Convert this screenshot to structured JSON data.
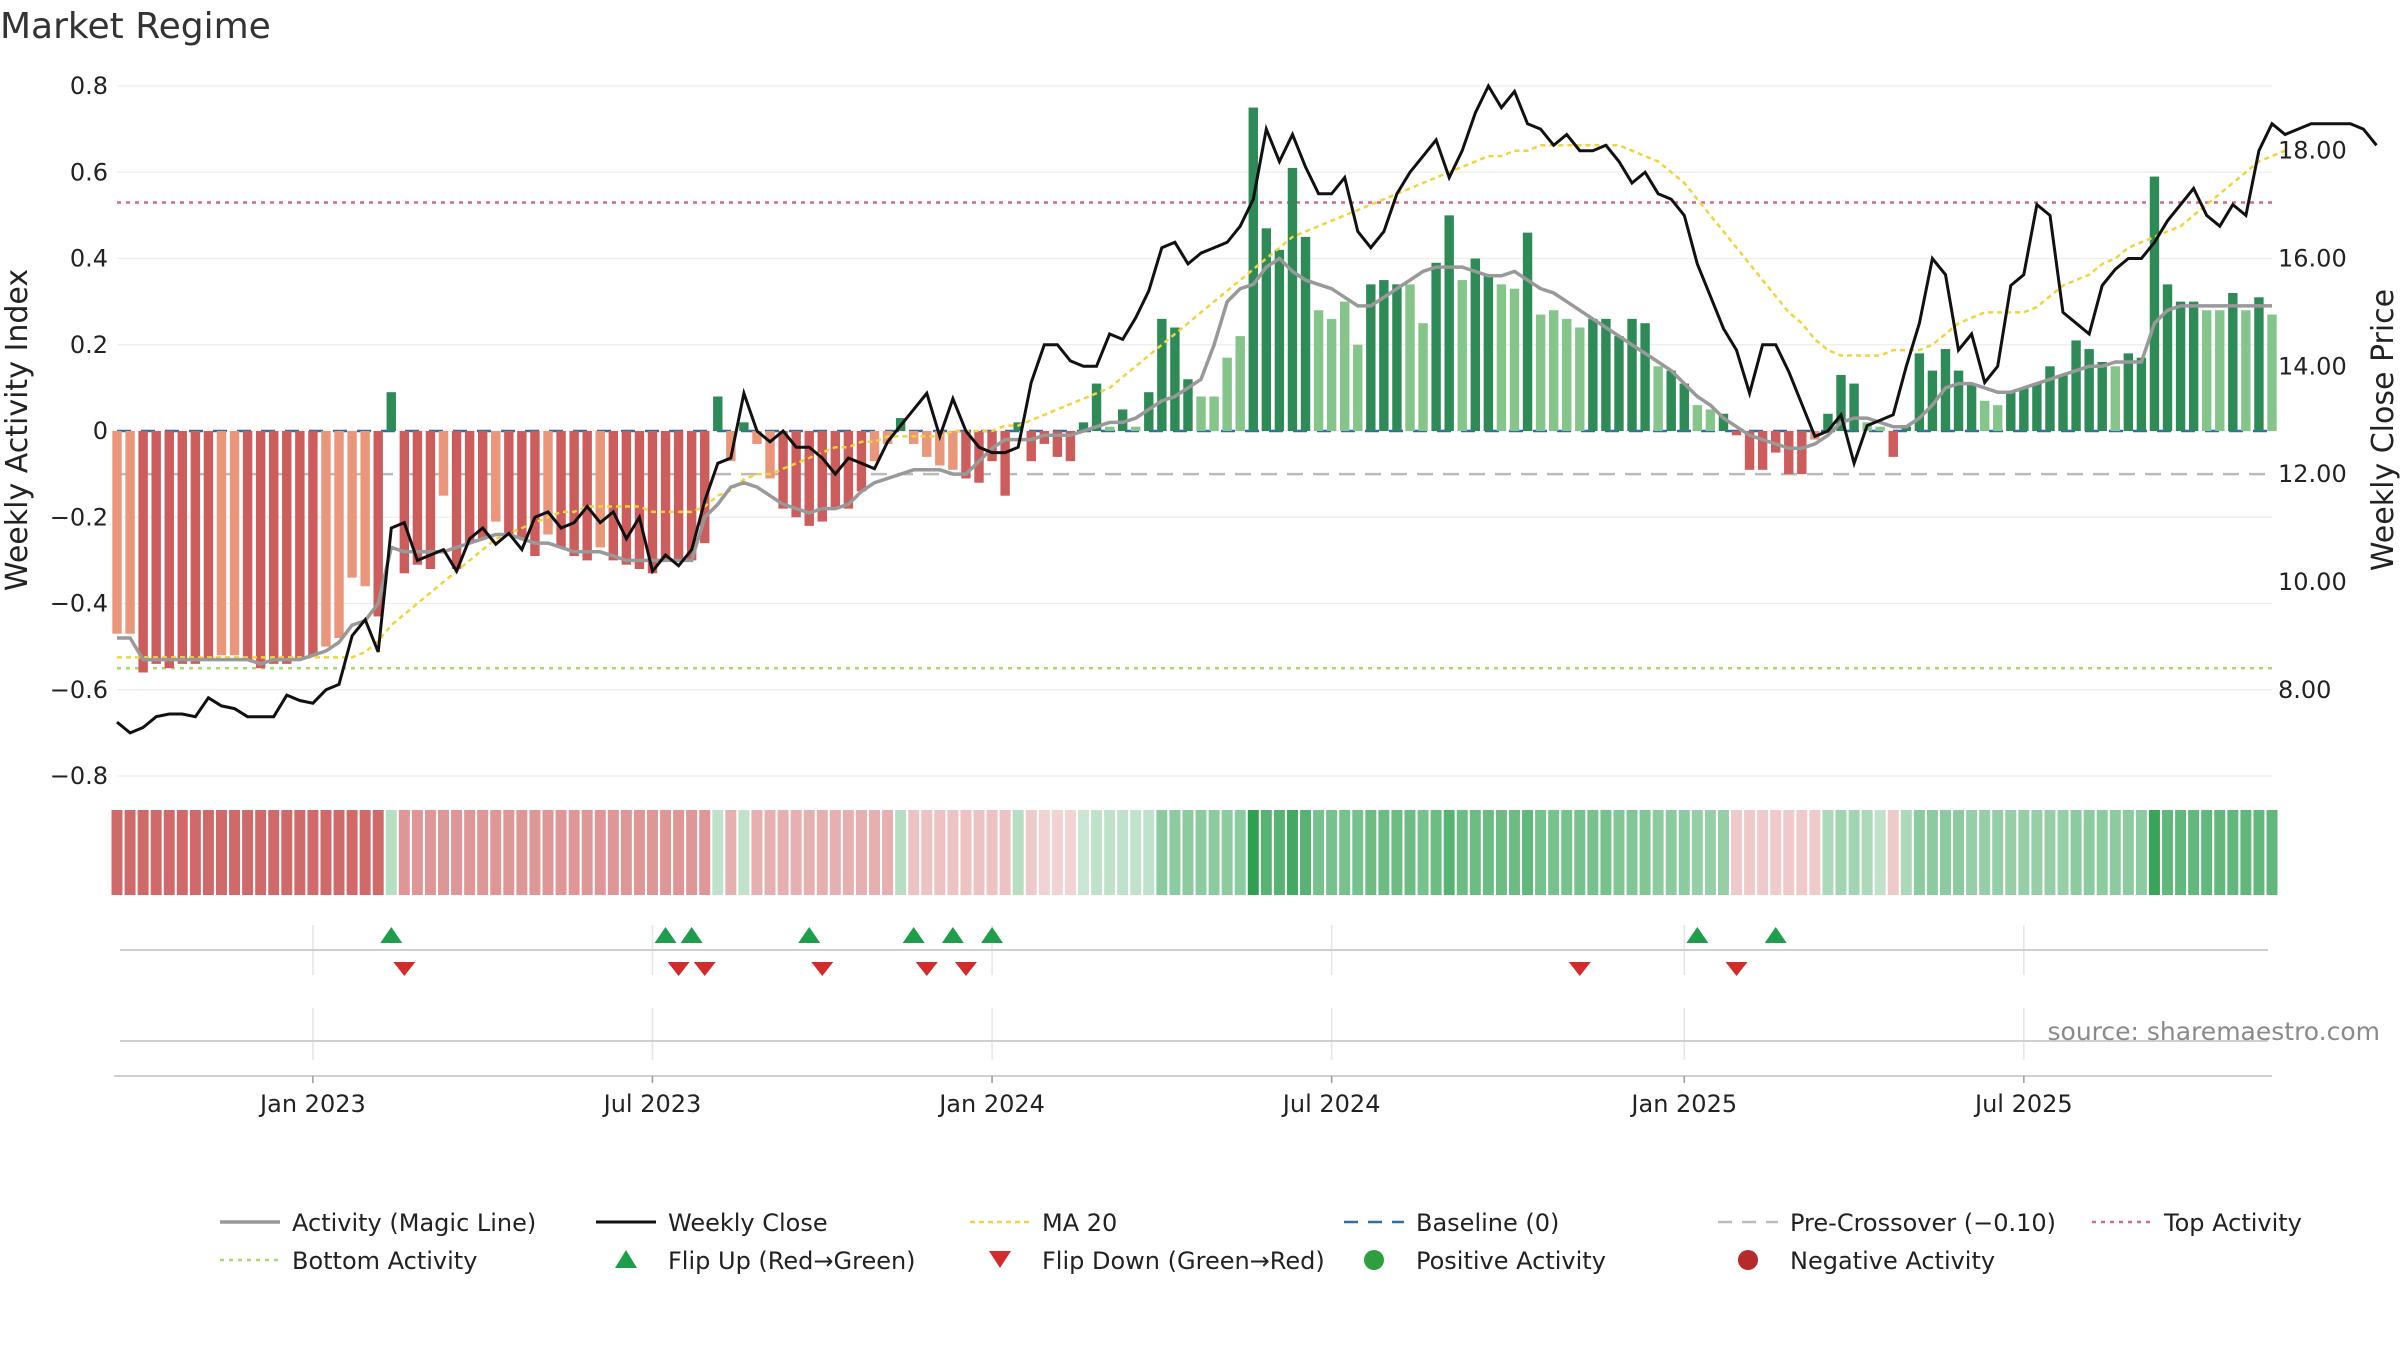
{
  "chart_data": {
    "type": "bar",
    "title": "Market Regime",
    "ylabel_left": "Weekly Activity Index",
    "ylabel_right": "Weekly Close Price",
    "source": "source: sharemaestro.com",
    "ylim_left": [
      -0.8,
      0.8
    ],
    "ylim_right": [
      6.4,
      19.2
    ],
    "yticks_left": [
      {
        "v": 0.8,
        "label": "0.8"
      },
      {
        "v": 0.6,
        "label": "0.6"
      },
      {
        "v": 0.4,
        "label": "0.4"
      },
      {
        "v": 0.2,
        "label": "0.2"
      },
      {
        "v": 0,
        "label": "0"
      },
      {
        "v": -0.2,
        "label": "−0.2"
      },
      {
        "v": -0.4,
        "label": "−0.4"
      },
      {
        "v": -0.6,
        "label": "−0.6"
      },
      {
        "v": -0.8,
        "label": "−0.8"
      }
    ],
    "yticks_right": [
      {
        "v": 18,
        "label": "18.00"
      },
      {
        "v": 16,
        "label": "16.00"
      },
      {
        "v": 14,
        "label": "14.00"
      },
      {
        "v": 12,
        "label": "12.00"
      },
      {
        "v": 10,
        "label": "10.00"
      },
      {
        "v": 8,
        "label": "8.00"
      }
    ],
    "xticks": [
      {
        "week": 15,
        "label": "Jan 2023"
      },
      {
        "week": 41,
        "label": "Jul 2023"
      },
      {
        "week": 67,
        "label": "Jan 2024"
      },
      {
        "week": 93,
        "label": "Jul 2024"
      },
      {
        "week": 120,
        "label": "Jan 2025"
      },
      {
        "week": 146,
        "label": "Jul 2025"
      }
    ],
    "levels": {
      "top": 0.53,
      "bottom": -0.55,
      "baseline": 0,
      "pre_crossover": -0.1
    },
    "activity": [
      -0.47,
      -0.47,
      -0.56,
      -0.54,
      -0.55,
      -0.54,
      -0.54,
      -0.53,
      -0.52,
      -0.52,
      -0.53,
      -0.55,
      -0.54,
      -0.54,
      -0.53,
      -0.52,
      -0.5,
      -0.48,
      -0.34,
      -0.36,
      -0.43,
      0.09,
      -0.33,
      -0.31,
      -0.32,
      -0.15,
      -0.32,
      -0.26,
      -0.25,
      -0.21,
      -0.24,
      -0.25,
      -0.29,
      -0.24,
      -0.27,
      -0.29,
      -0.3,
      -0.27,
      -0.3,
      -0.31,
      -0.32,
      -0.33,
      -0.3,
      -0.3,
      -0.3,
      -0.26,
      0.08,
      -0.07,
      0.02,
      -0.03,
      -0.11,
      -0.18,
      -0.2,
      -0.22,
      -0.21,
      -0.18,
      -0.18,
      -0.14,
      -0.07,
      -0.03,
      0.03,
      -0.03,
      -0.06,
      -0.08,
      -0.09,
      -0.11,
      -0.12,
      -0.07,
      -0.15,
      0.02,
      -0.07,
      -0.03,
      -0.06,
      -0.07,
      0.02,
      0.11,
      0.01,
      0.05,
      0.01,
      0.09,
      0.26,
      0.24,
      0.12,
      0.08,
      0.08,
      0.17,
      0.22,
      0.75,
      0.47,
      0.42,
      0.61,
      0.45,
      0.28,
      0.26,
      0.3,
      0.2,
      0.34,
      0.35,
      0.34,
      0.34,
      0.25,
      0.39,
      0.5,
      0.35,
      0.4,
      0.36,
      0.34,
      0.33,
      0.46,
      0.27,
      0.28,
      0.26,
      0.24,
      0.26,
      0.26,
      0.22,
      0.26,
      0.25,
      0.15,
      0.14,
      0.11,
      0.06,
      0.05,
      0.04,
      -0.01,
      -0.09,
      -0.09,
      -0.05,
      -0.1,
      -0.1,
      -0.02,
      0.04,
      0.13,
      0.11,
      0.02,
      0.01,
      -0.06,
      0.01,
      0.18,
      0.14,
      0.19,
      0.14,
      0.11,
      0.07,
      0.06,
      0.09,
      0.1,
      0.11,
      0.15,
      0.13,
      0.21,
      0.19,
      0.16,
      0.15,
      0.18,
      0.17,
      0.59,
      0.34,
      0.3,
      0.3,
      0.28,
      0.28,
      0.32,
      0.28,
      0.31,
      0.27
    ],
    "magic_line": [
      -0.48,
      -0.48,
      -0.53,
      -0.53,
      -0.53,
      -0.53,
      -0.53,
      -0.53,
      -0.53,
      -0.53,
      -0.53,
      -0.54,
      -0.53,
      -0.53,
      -0.53,
      -0.52,
      -0.51,
      -0.49,
      -0.45,
      -0.44,
      -0.4,
      -0.27,
      -0.28,
      -0.28,
      -0.28,
      -0.28,
      -0.27,
      -0.26,
      -0.25,
      -0.24,
      -0.24,
      -0.25,
      -0.26,
      -0.26,
      -0.27,
      -0.28,
      -0.28,
      -0.28,
      -0.29,
      -0.3,
      -0.3,
      -0.3,
      -0.3,
      -0.3,
      -0.3,
      -0.2,
      -0.17,
      -0.13,
      -0.12,
      -0.13,
      -0.15,
      -0.17,
      -0.18,
      -0.19,
      -0.18,
      -0.18,
      -0.17,
      -0.14,
      -0.12,
      -0.11,
      -0.1,
      -0.09,
      -0.09,
      -0.09,
      -0.1,
      -0.1,
      -0.07,
      -0.04,
      -0.02,
      -0.02,
      -0.02,
      -0.01,
      -0.01,
      -0.01,
      0.0,
      0.01,
      0.02,
      0.02,
      0.03,
      0.05,
      0.07,
      0.08,
      0.1,
      0.12,
      0.2,
      0.3,
      0.33,
      0.34,
      0.38,
      0.4,
      0.37,
      0.35,
      0.34,
      0.33,
      0.31,
      0.29,
      0.29,
      0.31,
      0.33,
      0.35,
      0.37,
      0.38,
      0.38,
      0.38,
      0.37,
      0.36,
      0.36,
      0.37,
      0.35,
      0.33,
      0.32,
      0.3,
      0.28,
      0.26,
      0.24,
      0.22,
      0.2,
      0.18,
      0.16,
      0.14,
      0.11,
      0.08,
      0.06,
      0.03,
      0.01,
      -0.01,
      -0.02,
      -0.03,
      -0.04,
      -0.04,
      -0.03,
      -0.01,
      0.02,
      0.03,
      0.03,
      0.02,
      0.01,
      0.01,
      0.03,
      0.06,
      0.1,
      0.11,
      0.11,
      0.1,
      0.09,
      0.09,
      0.1,
      0.11,
      0.12,
      0.13,
      0.14,
      0.15,
      0.15,
      0.16,
      0.16,
      0.16,
      0.25,
      0.28,
      0.29,
      0.29,
      0.29,
      0.29,
      0.29,
      0.29,
      0.29,
      0.29
    ],
    "weekly_close": [
      7.4,
      7.2,
      7.3,
      7.5,
      7.55,
      7.55,
      7.5,
      7.85,
      7.7,
      7.65,
      7.5,
      7.5,
      7.5,
      7.9,
      7.8,
      7.75,
      8.0,
      8.1,
      9.0,
      9.3,
      8.7,
      11.0,
      11.1,
      10.4,
      10.5,
      10.6,
      10.2,
      10.8,
      11.0,
      10.7,
      10.9,
      10.6,
      11.2,
      11.3,
      11.0,
      11.1,
      11.4,
      11.1,
      11.3,
      10.8,
      11.2,
      10.2,
      10.5,
      10.3,
      10.6,
      11.5,
      12.2,
      12.3,
      13.5,
      12.8,
      12.6,
      12.8,
      12.5,
      12.5,
      12.3,
      12.0,
      12.3,
      12.2,
      12.1,
      12.6,
      12.9,
      13.2,
      13.5,
      12.7,
      13.4,
      12.8,
      12.5,
      12.4,
      12.4,
      12.5,
      13.7,
      14.4,
      14.4,
      14.1,
      14.0,
      14.0,
      14.6,
      14.5,
      14.9,
      15.4,
      16.2,
      16.3,
      15.9,
      16.1,
      16.2,
      16.3,
      16.6,
      17.1,
      18.4,
      17.8,
      18.3,
      17.7,
      17.2,
      17.2,
      17.5,
      16.5,
      16.2,
      16.5,
      17.2,
      17.6,
      17.9,
      18.2,
      17.5,
      18.0,
      18.7,
      19.2,
      18.8,
      19.1,
      18.5,
      18.4,
      18.1,
      18.3,
      18.0,
      18.0,
      18.1,
      17.8,
      17.4,
      17.6,
      17.2,
      17.1,
      16.8,
      15.9,
      15.3,
      14.7,
      14.3,
      13.5,
      14.4,
      14.4,
      13.9,
      13.3,
      12.7,
      12.8,
      13.1,
      12.2,
      12.9,
      13.0,
      13.1,
      14.0,
      14.8,
      16.0,
      15.7,
      14.3,
      14.6,
      13.7,
      14.0,
      15.5,
      15.7,
      17.0,
      16.8,
      15.0,
      14.8,
      14.6,
      15.5,
      15.8,
      16.0,
      16.0,
      16.3,
      16.7,
      17.0,
      17.3,
      16.8,
      16.6,
      17.0,
      16.8,
      18.0,
      18.5,
      18.3,
      18.4,
      18.5,
      18.5,
      18.5,
      18.5,
      18.4,
      18.1
    ],
    "ma20": [
      8.6,
      8.6,
      8.6,
      8.6,
      8.6,
      8.6,
      8.6,
      8.6,
      8.6,
      8.6,
      8.6,
      8.6,
      8.6,
      8.6,
      8.6,
      8.6,
      8.6,
      8.6,
      8.6,
      8.7,
      8.9,
      9.2,
      9.4,
      9.6,
      9.8,
      10.0,
      10.2,
      10.4,
      10.6,
      10.8,
      10.9,
      11.0,
      11.1,
      11.2,
      11.3,
      11.3,
      11.4,
      11.4,
      11.4,
      11.4,
      11.4,
      11.3,
      11.3,
      11.3,
      11.3,
      11.4,
      11.6,
      11.7,
      11.9,
      12.0,
      12.0,
      12.1,
      12.2,
      12.3,
      12.4,
      12.5,
      12.5,
      12.6,
      12.6,
      12.7,
      12.7,
      12.7,
      12.7,
      12.7,
      12.8,
      12.8,
      12.8,
      12.8,
      12.9,
      12.9,
      13.0,
      13.1,
      13.2,
      13.3,
      13.4,
      13.5,
      13.6,
      13.8,
      14.0,
      14.2,
      14.4,
      14.6,
      14.8,
      15.0,
      15.2,
      15.4,
      15.6,
      15.8,
      16.0,
      16.2,
      16.4,
      16.5,
      16.6,
      16.7,
      16.8,
      16.9,
      17.0,
      17.1,
      17.2,
      17.3,
      17.4,
      17.5,
      17.6,
      17.7,
      17.8,
      17.9,
      17.9,
      18.0,
      18.0,
      18.1,
      18.1,
      18.1,
      18.1,
      18.1,
      18.1,
      18.1,
      18.0,
      17.9,
      17.8,
      17.6,
      17.4,
      17.1,
      16.8,
      16.5,
      16.2,
      15.9,
      15.6,
      15.3,
      15.0,
      14.8,
      14.5,
      14.3,
      14.2,
      14.2,
      14.2,
      14.2,
      14.3,
      14.3,
      14.3,
      14.4,
      14.6,
      14.8,
      14.9,
      15.0,
      15.0,
      15.0,
      15.0,
      15.1,
      15.3,
      15.5,
      15.6,
      15.7,
      15.9,
      16.0,
      16.2,
      16.3,
      16.4,
      16.5,
      16.6,
      16.8,
      17.0,
      17.2,
      17.4,
      17.6,
      17.8,
      17.9,
      18.0
    ],
    "regime_strip_alpha": [
      0.85,
      0.85,
      0.85,
      0.85,
      0.85,
      0.85,
      0.85,
      0.85,
      0.85,
      0.85,
      0.85,
      0.85,
      0.85,
      0.85,
      0.85,
      0.85,
      0.85,
      0.85,
      0.85,
      0.85,
      0.85,
      0.35,
      0.6,
      0.6,
      0.6,
      0.6,
      0.6,
      0.6,
      0.6,
      0.6,
      0.6,
      0.6,
      0.6,
      0.6,
      0.6,
      0.6,
      0.6,
      0.6,
      0.6,
      0.6,
      0.6,
      0.6,
      0.6,
      0.6,
      0.6,
      0.6,
      0.3,
      0.45,
      0.3,
      0.45,
      0.45,
      0.45,
      0.45,
      0.45,
      0.45,
      0.45,
      0.45,
      0.45,
      0.45,
      0.45,
      0.35,
      0.35,
      0.35,
      0.35,
      0.35,
      0.35,
      0.35,
      0.35,
      0.35,
      0.35,
      0.3,
      0.25,
      0.25,
      0.25,
      0.25,
      0.3,
      0.3,
      0.3,
      0.3,
      0.3,
      0.55,
      0.55,
      0.55,
      0.55,
      0.55,
      0.55,
      0.55,
      1.0,
      0.8,
      0.8,
      0.9,
      0.8,
      0.65,
      0.65,
      0.65,
      0.65,
      0.7,
      0.7,
      0.7,
      0.7,
      0.65,
      0.7,
      0.8,
      0.7,
      0.7,
      0.7,
      0.7,
      0.7,
      0.75,
      0.65,
      0.65,
      0.65,
      0.65,
      0.65,
      0.65,
      0.6,
      0.6,
      0.6,
      0.55,
      0.55,
      0.55,
      0.5,
      0.5,
      0.5,
      0.3,
      0.3,
      0.3,
      0.3,
      0.3,
      0.3,
      0.3,
      0.4,
      0.45,
      0.45,
      0.4,
      0.3,
      0.3,
      0.4,
      0.55,
      0.55,
      0.55,
      0.55,
      0.5,
      0.5,
      0.5,
      0.5,
      0.5,
      0.5,
      0.5,
      0.5,
      0.55,
      0.55,
      0.55,
      0.55,
      0.55,
      0.55,
      0.95,
      0.75,
      0.75,
      0.75,
      0.75,
      0.75,
      0.75,
      0.75,
      0.75,
      0.75
    ],
    "flip_up_weeks": [
      21,
      42,
      44,
      53,
      61,
      64,
      67,
      121,
      127
    ],
    "flip_down_weeks": [
      22,
      43,
      45,
      54,
      62,
      65,
      112,
      124
    ],
    "positive_activity_weeks": [],
    "negative_activity_weeks": [],
    "colors": {
      "green_dark": "#2e8b57",
      "green_light": "#85c48a",
      "red_dark": "#cd5c5c",
      "red_light": "#e9967a",
      "magic_line": "#999999",
      "weekly_close": "#111111",
      "ma20": "#f2d33a",
      "baseline": "#2c6fa8",
      "pre_crossover": "#bbbbbb",
      "top_activity": "#d46a8a",
      "bottom_activity": "#a8d86e",
      "flip_up": "#1e9e4a",
      "flip_down": "#d12b2b",
      "positive_dot": "#2e9e3e",
      "negative_dot": "#b52a2a"
    },
    "legend": [
      {
        "key": "magic",
        "label": "Activity (Magic Line)",
        "style": "line-gray"
      },
      {
        "key": "close",
        "label": "Weekly Close",
        "style": "line-black"
      },
      {
        "key": "ma20",
        "label": "MA 20",
        "style": "dot-yellow"
      },
      {
        "key": "baseline",
        "label": "Baseline (0)",
        "style": "dash-blue"
      },
      {
        "key": "precross",
        "label": "Pre-Crossover (−0.10)",
        "style": "dash-gray"
      },
      {
        "key": "top",
        "label": "Top Activity",
        "style": "dot-pink"
      },
      {
        "key": "bottom",
        "label": "Bottom Activity",
        "style": "dot-green"
      },
      {
        "key": "flipup",
        "label": "Flip Up (Red→Green)",
        "style": "tri-up"
      },
      {
        "key": "flipdown",
        "label": "Flip Down (Green→Red)",
        "style": "tri-down"
      },
      {
        "key": "pos",
        "label": "Positive Activity",
        "style": "dot-pos"
      },
      {
        "key": "neg",
        "label": "Negative Activity",
        "style": "dot-neg"
      }
    ]
  }
}
